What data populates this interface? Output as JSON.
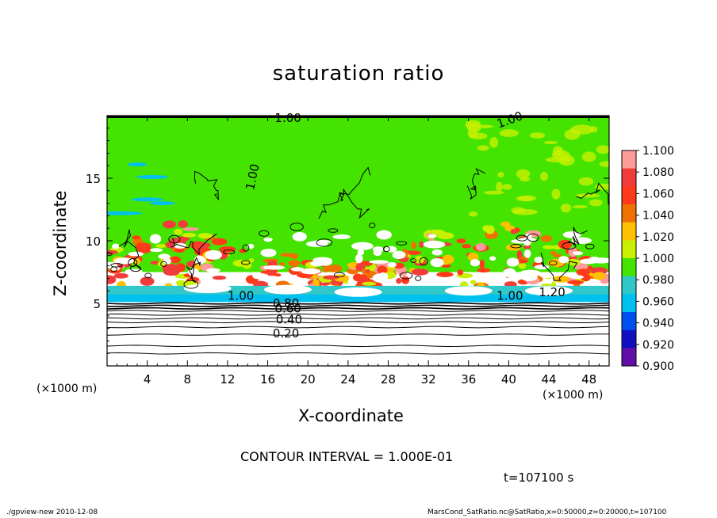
{
  "chart_data": {
    "type": "heatmap",
    "title": "saturation ratio",
    "xlabel": "X-coordinate",
    "ylabel": "Z-coordinate",
    "x_unit_label": "(×1000 m)",
    "x_ticks": [
      4,
      8,
      12,
      16,
      20,
      24,
      28,
      32,
      36,
      40,
      44,
      48
    ],
    "y_ticks": [
      5,
      10,
      15
    ],
    "xlim": [
      0,
      50
    ],
    "ylim": [
      0,
      20
    ],
    "colorbar": {
      "levels": [
        "1.100",
        "1.080",
        "1.060",
        "1.040",
        "1.020",
        "1.000",
        "0.980",
        "0.960",
        "0.940",
        "0.920",
        "0.900"
      ],
      "colors": [
        "#ff9a9a",
        "#f23c3c",
        "#ff3a1a",
        "#f07000",
        "#ffc000",
        "#c8f000",
        "#44e400",
        "#30c8c8",
        "#00c0f0",
        "#0050f0",
        "#1010c0",
        "#6010a8"
      ]
    },
    "contour_labels": [
      "0.20",
      "0.40",
      "0.60",
      "0.80",
      "1.00",
      "1.20"
    ],
    "contour_interval_text": "CONTOUR INTERVAL = 1.000E-01",
    "time_text": "t=107100 s",
    "footer_left": "./gpview-new   2010-12-08",
    "footer_right": "MarsCond_SatRatio.nc@SatRatio,x=0:50000,z=0:20000,t=107100"
  }
}
